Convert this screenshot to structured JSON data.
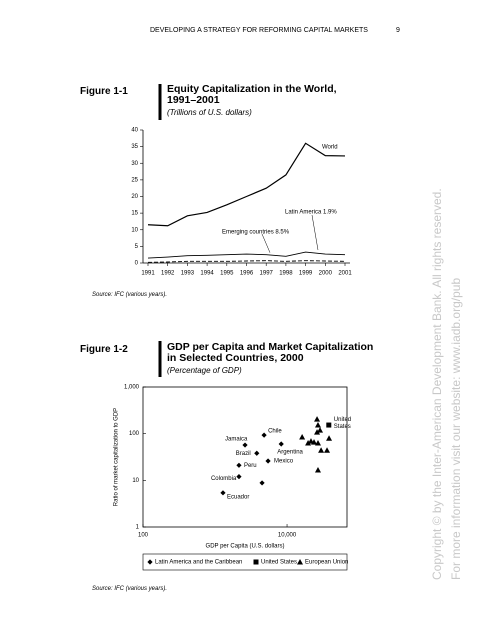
{
  "header": {
    "running_title": "DEVELOPING A STRATEGY FOR REFORMING CAPITAL MARKETS",
    "page_number": "9"
  },
  "figures": [
    {
      "label": "Figure 1-1",
      "title": "Equity Capitalization in the World, 1991–2001",
      "subtitle": "(Trillions of U.S. dollars)",
      "source": "Source: IFC (various years)."
    },
    {
      "label": "Figure 1-2",
      "title": "GDP per Capita and Market Capitalization in Selected Countries, 2000",
      "subtitle": "(Percentage of GDP)",
      "source": "Source: IFC (various years)."
    }
  ],
  "watermark": [
    "Copyright © by the Inter-American Development Bank. All rights reserved.",
    "For more information visit our website: www.iadb.org/pub"
  ],
  "chart_data": [
    {
      "type": "line",
      "categories": [
        "1991",
        "1992",
        "1993",
        "1994",
        "1995",
        "1996",
        "1997",
        "1998",
        "1999",
        "2000",
        "2001"
      ],
      "ylim": [
        0,
        40
      ],
      "yticks": [
        0,
        5,
        10,
        15,
        20,
        25,
        30,
        35,
        40
      ],
      "series": [
        {
          "name": "World",
          "color": "#000000",
          "line_style": "solid",
          "values": [
            11.5,
            11.2,
            14.2,
            15.2,
            17.5,
            20,
            22.5,
            26.5,
            36,
            32.3,
            32.2
          ]
        },
        {
          "name": "Emerging countries  8.5%",
          "color": "#000000",
          "line_style": "solid",
          "values": [
            1.5,
            1.8,
            2.2,
            2.3,
            2.5,
            2.7,
            2.5,
            2.0,
            3.3,
            2.7,
            2.5
          ]
        },
        {
          "name": "Latin America  1.9%",
          "color": "#000000",
          "line_style": "dashed",
          "values": [
            0.2,
            0.3,
            0.5,
            0.5,
            0.5,
            0.6,
            0.7,
            0.5,
            0.7,
            0.6,
            0.5
          ]
        }
      ]
    },
    {
      "type": "scatter",
      "log_x": true,
      "log_y": true,
      "x_label": "GDP per Capita (U.S. dollars)",
      "y_label": "Ratio of market capitalization to GDP",
      "xlim": [
        100,
        68000
      ],
      "xticks": [
        100,
        {
          "value": 10000,
          "label": "10,000"
        }
      ],
      "ylim": [
        1,
        1000
      ],
      "yticks": [
        1,
        10,
        100,
        {
          "value": 1000,
          "label": "1,000"
        }
      ],
      "legend": "bottom",
      "series": [
        {
          "name": "Latin America and the Caribbean",
          "color": "#000000",
          "marker": "diamond",
          "x": [
            2610,
            4800,
            3800,
            8300,
            5450,
            2150,
            2150,
            4500,
            1290
          ],
          "y": [
            57,
            93,
            38,
            60,
            26,
            21,
            12,
            8.8,
            5.4
          ],
          "labels": [
            "Jamaica",
            "Chile",
            "Brazil",
            "Argentina",
            "Mexico",
            "Peru",
            "Colombia",
            null,
            "Ecuador"
          ]
        },
        {
          "name": "United States",
          "color": "#000000",
          "marker": "square",
          "x": [
            38000
          ],
          "y": [
            153
          ],
          "labels": [
            "United States"
          ]
        },
        {
          "name": "European Union",
          "color": "#000000",
          "marker": "triangle",
          "x": [
            26100,
            26900,
            28700,
            26100,
            38300,
            23700,
            26900,
            21500,
            16200,
            29700,
            35900,
            26900,
            19600
          ],
          "y": [
            205,
            153,
            119,
            108,
            80,
            66,
            63,
            69,
            85,
            44,
            44,
            16.6,
            63
          ]
        }
      ]
    }
  ]
}
